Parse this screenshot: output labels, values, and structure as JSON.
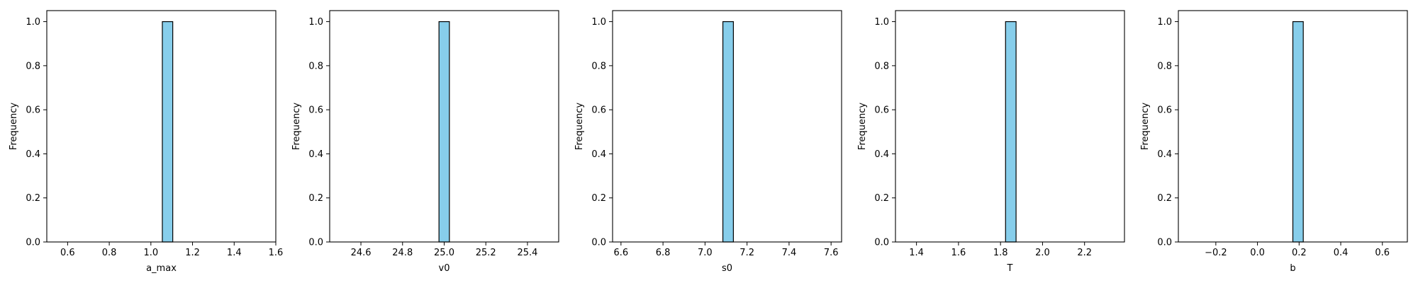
{
  "figure": {
    "background": "#ffffff",
    "bar_fill": "#87ceeb",
    "bar_edge": "#000000"
  },
  "chart_data": [
    {
      "type": "bar",
      "title": "",
      "xlabel": "a_max",
      "ylabel": "Frequency",
      "xlim": [
        0.5,
        1.6
      ],
      "ylim": [
        0,
        1.05
      ],
      "xticks": [
        0.6,
        0.8,
        1.0,
        1.2,
        1.4,
        1.6
      ],
      "xtick_labels": [
        "0.6",
        "0.8",
        "1.0",
        "1.2",
        "1.4",
        "1.6"
      ],
      "yticks": [
        0.0,
        0.2,
        0.4,
        0.6,
        0.8,
        1.0
      ],
      "ytick_labels": [
        "0.0",
        "0.2",
        "0.4",
        "0.6",
        "0.8",
        "1.0"
      ],
      "bars": [
        {
          "x0": 1.055,
          "x1": 1.105,
          "value": 1.0
        }
      ],
      "grid": false,
      "legend": "none"
    },
    {
      "type": "bar",
      "title": "",
      "xlabel": "v0",
      "ylabel": "Frequency",
      "xlim": [
        24.45,
        25.55
      ],
      "ylim": [
        0,
        1.05
      ],
      "xticks": [
        24.6,
        24.8,
        25.0,
        25.2,
        25.4
      ],
      "xtick_labels": [
        "24.6",
        "24.8",
        "25.0",
        "25.2",
        "25.4"
      ],
      "yticks": [
        0.0,
        0.2,
        0.4,
        0.6,
        0.8,
        1.0
      ],
      "ytick_labels": [
        "0.0",
        "0.2",
        "0.4",
        "0.6",
        "0.8",
        "1.0"
      ],
      "bars": [
        {
          "x0": 24.975,
          "x1": 25.025,
          "value": 1.0
        }
      ],
      "grid": false,
      "legend": "none"
    },
    {
      "type": "bar",
      "title": "",
      "xlabel": "s0",
      "ylabel": "Frequency",
      "xlim": [
        6.56,
        7.65
      ],
      "ylim": [
        0,
        1.05
      ],
      "xticks": [
        6.6,
        6.8,
        7.0,
        7.2,
        7.4,
        7.6
      ],
      "xtick_labels": [
        "6.6",
        "6.8",
        "7.0",
        "7.2",
        "7.4",
        "7.6"
      ],
      "yticks": [
        0.0,
        0.2,
        0.4,
        0.6,
        0.8,
        1.0
      ],
      "ytick_labels": [
        "0.0",
        "0.2",
        "0.4",
        "0.6",
        "0.8",
        "1.0"
      ],
      "bars": [
        {
          "x0": 7.085,
          "x1": 7.135,
          "value": 1.0
        }
      ],
      "grid": false,
      "legend": "none"
    },
    {
      "type": "bar",
      "title": "",
      "xlabel": "T",
      "ylabel": "Frequency",
      "xlim": [
        1.3,
        2.39
      ],
      "ylim": [
        0,
        1.05
      ],
      "xticks": [
        1.4,
        1.6,
        1.8,
        2.0,
        2.2
      ],
      "xtick_labels": [
        "1.4",
        "1.6",
        "1.8",
        "2.0",
        "2.2"
      ],
      "yticks": [
        0.0,
        0.2,
        0.4,
        0.6,
        0.8,
        1.0
      ],
      "ytick_labels": [
        "0.0",
        "0.2",
        "0.4",
        "0.6",
        "0.8",
        "1.0"
      ],
      "bars": [
        {
          "x0": 1.824,
          "x1": 1.874,
          "value": 1.0
        }
      ],
      "grid": false,
      "legend": "none"
    },
    {
      "type": "bar",
      "title": "",
      "xlabel": "b",
      "ylabel": "Frequency",
      "xlim": [
        -0.38,
        0.72
      ],
      "ylim": [
        0,
        1.05
      ],
      "xticks": [
        -0.2,
        0.0,
        0.2,
        0.4,
        0.6
      ],
      "xtick_labels": [
        "−0.2",
        "0.0",
        "0.2",
        "0.4",
        "0.6"
      ],
      "yticks": [
        0.0,
        0.2,
        0.4,
        0.6,
        0.8,
        1.0
      ],
      "ytick_labels": [
        "0.0",
        "0.2",
        "0.4",
        "0.6",
        "0.8",
        "1.0"
      ],
      "bars": [
        {
          "x0": 0.17,
          "x1": 0.22,
          "value": 1.0
        }
      ],
      "grid": false,
      "legend": "none"
    }
  ]
}
